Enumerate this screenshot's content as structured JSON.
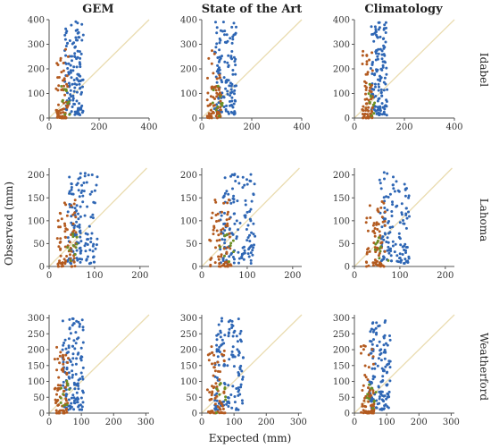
{
  "figure": {
    "columns": [
      "GEM",
      "State of the Art",
      "Climatology"
    ],
    "rows": [
      "Idabel",
      "Lahoma",
      "Weatherford"
    ],
    "xlabel": "Expected (mm)",
    "ylabel": "Observed (mm)"
  },
  "colors": {
    "blue": "#2e66b4",
    "orange": "#b35a1f",
    "green": "#6b8e23",
    "diagonal": "#eadcb0"
  },
  "chart_data": [
    {
      "type": "scatter",
      "row": "Idabel",
      "column": "GEM",
      "xlim": [
        0,
        400
      ],
      "ylim": [
        0,
        400
      ],
      "xticks": [
        0,
        200,
        400
      ],
      "yticks": [
        0,
        100,
        200,
        300,
        400
      ],
      "xcenter": 95,
      "xspread": 35,
      "ymax": 400,
      "seed": 11
    },
    {
      "type": "scatter",
      "row": "Idabel",
      "column": "State of the Art",
      "xlim": [
        0,
        400
      ],
      "ylim": [
        0,
        400
      ],
      "xticks": [
        0,
        200,
        400
      ],
      "yticks": [
        0,
        100,
        200,
        300,
        400
      ],
      "xcenter": 90,
      "xspread": 40,
      "ymax": 400,
      "seed": 12
    },
    {
      "type": "scatter",
      "row": "Idabel",
      "column": "Climatology",
      "xlim": [
        0,
        400
      ],
      "ylim": [
        0,
        400
      ],
      "xticks": [
        0,
        200,
        400
      ],
      "yticks": [
        0,
        100,
        200,
        300,
        400
      ],
      "xcenter": 95,
      "xspread": 30,
      "ymax": 400,
      "seed": 13
    },
    {
      "type": "scatter",
      "row": "Lahoma",
      "column": "GEM",
      "xlim": [
        0,
        220
      ],
      "ylim": [
        0,
        215
      ],
      "xticks": [
        0,
        100,
        200
      ],
      "yticks": [
        0,
        50,
        100,
        150,
        200
      ],
      "xcenter": 70,
      "xspread": 30,
      "ymax": 210,
      "seed": 21
    },
    {
      "type": "scatter",
      "row": "Lahoma",
      "column": "State of the Art",
      "xlim": [
        0,
        220
      ],
      "ylim": [
        0,
        215
      ],
      "xticks": [
        0,
        100,
        200
      ],
      "yticks": [
        0,
        50,
        100,
        150,
        200
      ],
      "xcenter": 75,
      "xspread": 35,
      "ymax": 210,
      "seed": 22
    },
    {
      "type": "scatter",
      "row": "Lahoma",
      "column": "Climatology",
      "xlim": [
        0,
        220
      ],
      "ylim": [
        0,
        215
      ],
      "xticks": [
        0,
        100,
        200
      ],
      "yticks": [
        0,
        50,
        100,
        150,
        200
      ],
      "xcenter": 85,
      "xspread": 30,
      "ymax": 210,
      "seed": 23
    },
    {
      "type": "scatter",
      "row": "Weatherford",
      "column": "GEM",
      "xlim": [
        0,
        310
      ],
      "ylim": [
        0,
        310
      ],
      "xticks": [
        0,
        100,
        200,
        300
      ],
      "yticks": [
        0,
        50,
        100,
        150,
        200,
        250,
        300
      ],
      "xcenter": 70,
      "xspread": 30,
      "ymax": 305,
      "seed": 31
    },
    {
      "type": "scatter",
      "row": "Weatherford",
      "column": "State of the Art",
      "xlim": [
        0,
        310
      ],
      "ylim": [
        0,
        310
      ],
      "xticks": [
        0,
        100,
        200,
        300
      ],
      "yticks": [
        0,
        50,
        100,
        150,
        200,
        250,
        300
      ],
      "xcenter": 80,
      "xspread": 40,
      "ymax": 305,
      "seed": 32
    },
    {
      "type": "scatter",
      "row": "Weatherford",
      "column": "Climatology",
      "xlim": [
        0,
        310
      ],
      "ylim": [
        0,
        310
      ],
      "xticks": [
        0,
        100,
        200,
        300
      ],
      "yticks": [
        0,
        50,
        100,
        150,
        200,
        250,
        300
      ],
      "xcenter": 75,
      "xspread": 30,
      "ymax": 305,
      "seed": 33
    }
  ]
}
